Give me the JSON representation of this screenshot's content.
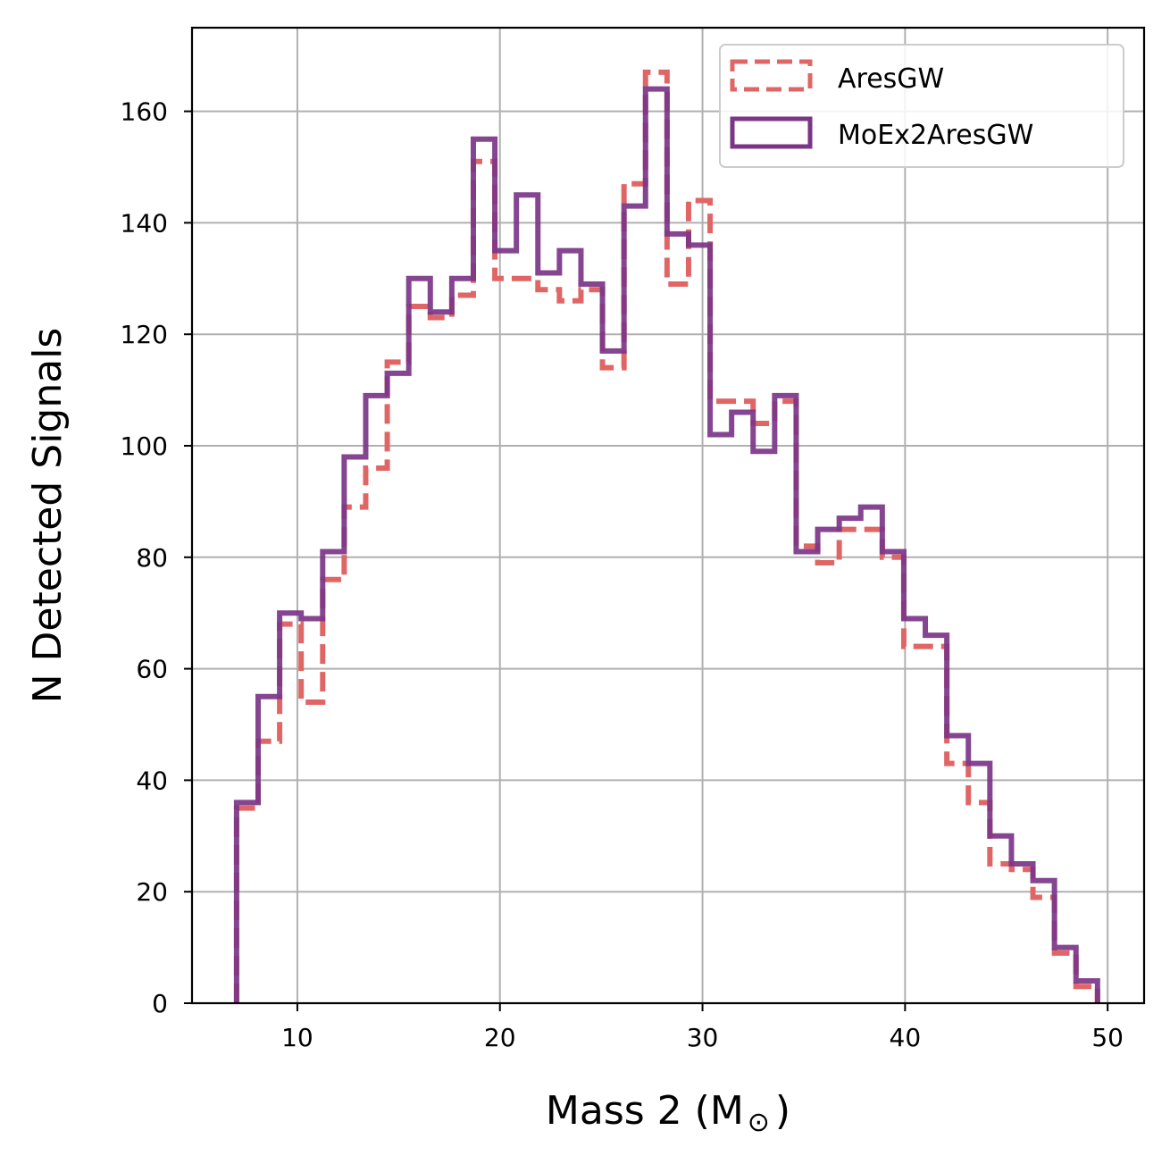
{
  "chart_data": {
    "type": "histogram-step",
    "xlabel": "Mass 2 (M",
    "xlabel_symbol": "⊙",
    "xlabel_close": ")",
    "ylabel": "N Detected Signals",
    "xlim": [
      4.8,
      51.8
    ],
    "ylim": [
      0,
      175
    ],
    "xticks": [
      10,
      20,
      30,
      40,
      50
    ],
    "yticks": [
      0,
      20,
      40,
      60,
      80,
      100,
      120,
      140,
      160
    ],
    "grid": true,
    "legend_position": "top-right",
    "bin_start": 7.0,
    "bin_width": 1.0625,
    "series": [
      {
        "name": "AresGW",
        "style": "dashed",
        "color": "#e06666",
        "values": [
          35,
          47,
          68,
          54,
          76,
          89,
          96,
          115,
          125,
          123,
          127,
          151,
          130,
          130,
          128,
          126,
          128,
          114,
          147,
          167,
          129,
          144,
          108,
          108,
          104,
          108,
          82,
          79,
          85,
          85,
          80,
          64,
          64,
          43,
          36,
          25,
          24,
          19,
          9,
          3
        ]
      },
      {
        "name": "MoEx2AresGW",
        "style": "solid",
        "color": "#7b3587",
        "values": [
          36,
          55,
          70,
          69,
          81,
          98,
          109,
          113,
          130,
          124,
          130,
          155,
          135,
          145,
          131,
          135,
          129,
          117,
          143,
          164,
          138,
          136,
          102,
          106,
          99,
          109,
          81,
          85,
          87,
          89,
          81,
          69,
          66,
          48,
          43,
          30,
          25,
          22,
          10,
          4
        ]
      }
    ]
  }
}
